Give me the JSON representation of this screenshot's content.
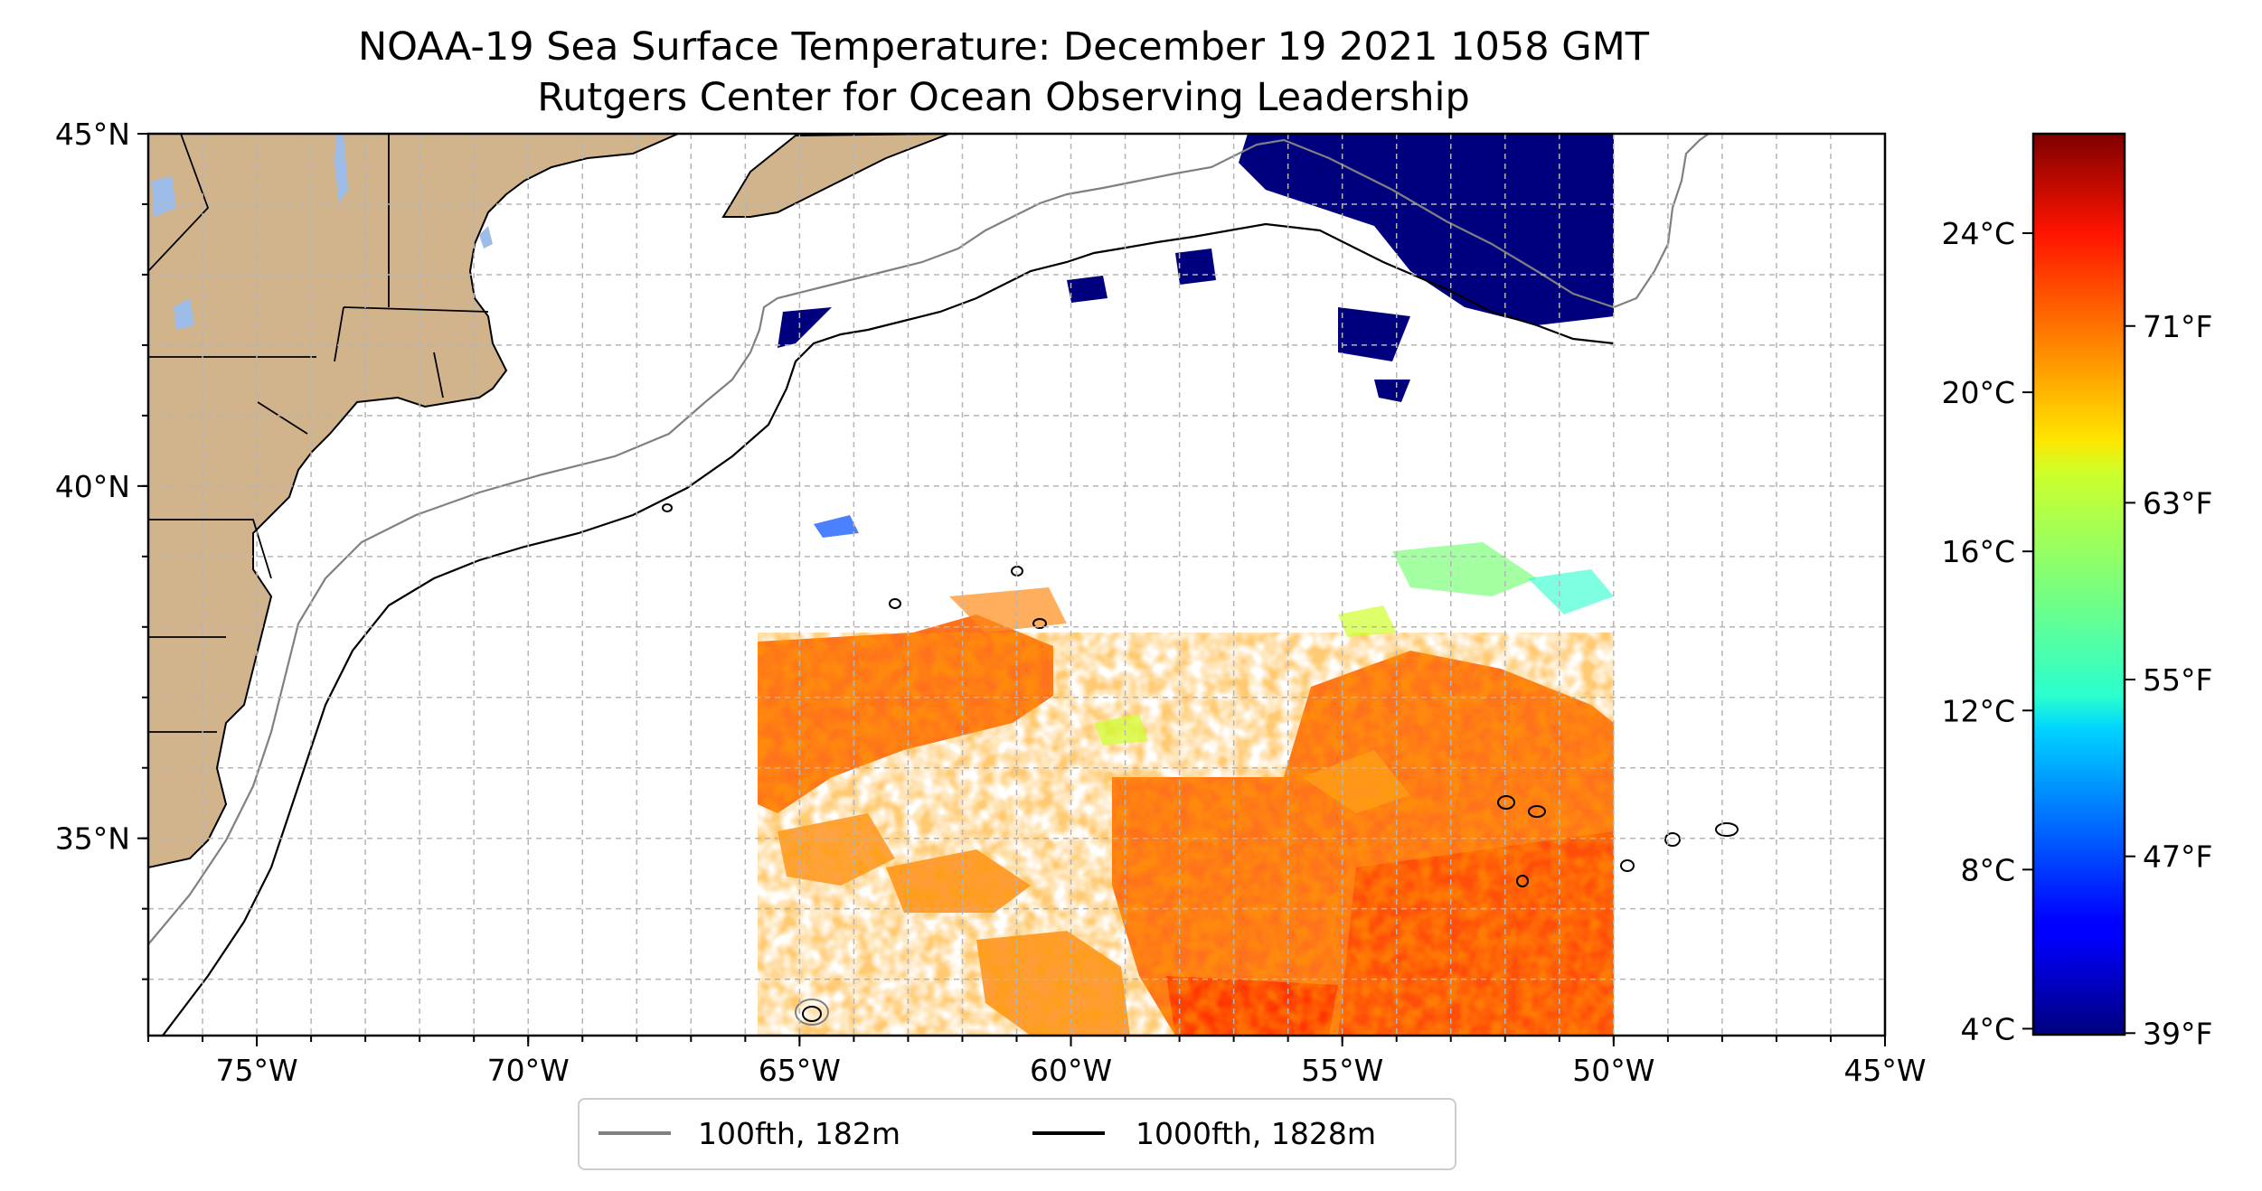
{
  "title": {
    "line1": "NOAA-19 Sea Surface Temperature: December 19 2021 1058 GMT",
    "line2": "Rutgers Center for Ocean Observing Leadership"
  },
  "map": {
    "lon_range": [
      -77,
      -45
    ],
    "lat_range": [
      32.2,
      45
    ],
    "lon_ticks": [
      {
        "value": -75,
        "label": "75°W"
      },
      {
        "value": -70,
        "label": "70°W"
      },
      {
        "value": -65,
        "label": "65°W"
      },
      {
        "value": -60,
        "label": "60°W"
      },
      {
        "value": -55,
        "label": "55°W"
      },
      {
        "value": -50,
        "label": "50°W"
      },
      {
        "value": -45,
        "label": "45°W"
      }
    ],
    "lat_ticks": [
      {
        "value": 45,
        "label": "45°N"
      },
      {
        "value": 40,
        "label": "40°N"
      },
      {
        "value": 35,
        "label": "35°N"
      }
    ],
    "land_color": "#d2b48c",
    "lake_color": "#9dbde8",
    "grid": true
  },
  "legend": {
    "placement": "bottom-center",
    "items": [
      {
        "label": "100fth, 182m",
        "color": "#808080"
      },
      {
        "label": "1000fth, 1828m",
        "color": "#000000"
      }
    ]
  },
  "colorbar": {
    "colormap": "jet",
    "celsius_range": [
      3.85,
      26.5
    ],
    "celsius_ticks": [
      {
        "value": 4,
        "label": "4°C"
      },
      {
        "value": 8,
        "label": "8°C"
      },
      {
        "value": 12,
        "label": "12°C"
      },
      {
        "value": 16,
        "label": "16°C"
      },
      {
        "value": 20,
        "label": "20°C"
      },
      {
        "value": 24,
        "label": "24°C"
      }
    ],
    "fahrenheit_ticks": [
      {
        "value": 39,
        "label": "39°F"
      },
      {
        "value": 47,
        "label": "47°F"
      },
      {
        "value": 55,
        "label": "55°F"
      },
      {
        "value": 63,
        "label": "63°F"
      },
      {
        "value": 71,
        "label": "71°F"
      }
    ]
  }
}
